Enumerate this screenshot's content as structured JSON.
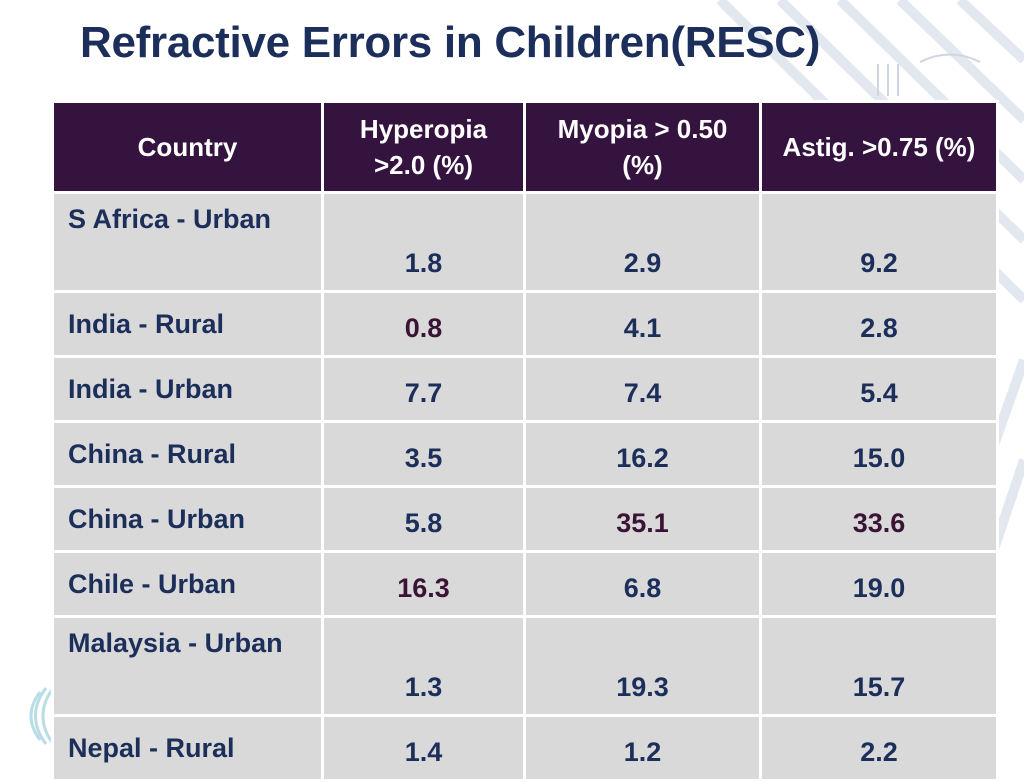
{
  "title": "Refractive Errors in Children(RESC)",
  "colors": {
    "header_bg": "#34133f",
    "cell_bg": "#d9d9d9",
    "text_navy": "#1c2e5a",
    "text_maroon": "#3b1435"
  },
  "table": {
    "headers": [
      "Country",
      "Hyperopia >2.0 (%)",
      "Myopia > 0.50 (%)",
      "Astig.  >0.75 (%)"
    ],
    "rows": [
      {
        "country": "S Africa - Urban",
        "hyperopia": "1.8",
        "myopia": "2.9",
        "astig": "9.2"
      },
      {
        "country": "India - Rural",
        "hyperopia": "0.8",
        "myopia": "4.1",
        "astig": "2.8"
      },
      {
        "country": "India - Urban",
        "hyperopia": "7.7",
        "myopia": "7.4",
        "astig": "5.4"
      },
      {
        "country": "China - Rural",
        "hyperopia": "3.5",
        "myopia": "16.2",
        "astig": "15.0"
      },
      {
        "country": "China - Urban",
        "hyperopia": "5.8",
        "myopia": "35.1",
        "astig": "33.6"
      },
      {
        "country": "Chile - Urban",
        "hyperopia": "16.3",
        "myopia": "6.8",
        "astig": "19.0"
      },
      {
        "country": "Malaysia - Urban",
        "hyperopia": "1.3",
        "myopia": "19.3",
        "astig": "15.7"
      },
      {
        "country": "Nepal - Rural",
        "hyperopia": "1.4",
        "myopia": "1.2",
        "astig": "2.2"
      }
    ]
  }
}
